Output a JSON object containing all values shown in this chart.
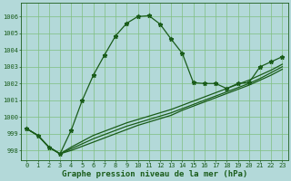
{
  "title": "Graphe pression niveau de la mer (hPa)",
  "bg_color": "#b3d9d9",
  "line_color": "#1a5c1a",
  "grid_color": "#7fbf7f",
  "xlim": [
    -0.5,
    23.5
  ],
  "ylim": [
    997.4,
    1006.8
  ],
  "yticks": [
    998,
    999,
    1000,
    1001,
    1002,
    1003,
    1004,
    1005,
    1006
  ],
  "xticks": [
    0,
    1,
    2,
    3,
    4,
    5,
    6,
    7,
    8,
    9,
    10,
    11,
    12,
    13,
    14,
    15,
    16,
    17,
    18,
    19,
    20,
    21,
    22,
    23
  ],
  "series1_x": [
    0,
    1,
    2,
    3,
    4,
    5,
    6,
    7,
    8,
    9,
    10,
    11,
    12,
    13,
    14,
    15,
    16,
    17,
    18,
    19,
    20,
    21,
    22,
    23
  ],
  "series1_y": [
    999.3,
    998.9,
    998.2,
    997.8,
    999.2,
    1001.0,
    1002.5,
    1003.7,
    1004.85,
    1005.6,
    1006.0,
    1006.05,
    1005.55,
    1004.65,
    1003.8,
    1002.05,
    1002.0,
    1002.0,
    1001.7,
    1002.0,
    1002.05,
    1003.0,
    1003.3,
    1003.6
  ],
  "series2_x": [
    0,
    1,
    2,
    3,
    4,
    5,
    6,
    7,
    8,
    9,
    10,
    11,
    12,
    13,
    14,
    15,
    16,
    17,
    18,
    19,
    20,
    21,
    22,
    23
  ],
  "series2_y": [
    999.3,
    998.9,
    998.2,
    997.8,
    998.0,
    998.25,
    998.5,
    998.75,
    999.0,
    999.25,
    999.5,
    999.7,
    999.9,
    1000.1,
    1000.4,
    1000.65,
    1000.9,
    1001.15,
    1001.4,
    1001.65,
    1001.9,
    1002.2,
    1002.5,
    1002.85
  ],
  "series3_x": [
    0,
    1,
    2,
    3,
    4,
    5,
    6,
    7,
    8,
    9,
    10,
    11,
    12,
    13,
    14,
    15,
    16,
    17,
    18,
    19,
    20,
    21,
    22,
    23
  ],
  "series3_y": [
    999.3,
    998.9,
    998.2,
    997.8,
    998.1,
    998.4,
    998.7,
    998.95,
    999.2,
    999.45,
    999.65,
    999.85,
    1000.05,
    1000.25,
    1000.5,
    1000.75,
    1001.0,
    1001.25,
    1001.5,
    1001.75,
    1002.0,
    1002.3,
    1002.65,
    1003.0
  ],
  "series4_x": [
    0,
    1,
    2,
    3,
    4,
    5,
    6,
    7,
    8,
    9,
    10,
    11,
    12,
    13,
    14,
    15,
    16,
    17,
    18,
    19,
    20,
    21,
    22,
    23
  ],
  "series4_y": [
    999.3,
    998.9,
    998.2,
    997.8,
    998.2,
    998.55,
    998.9,
    999.15,
    999.4,
    999.65,
    999.85,
    1000.05,
    1000.25,
    1000.45,
    1000.7,
    1000.95,
    1001.2,
    1001.45,
    1001.7,
    1001.95,
    1002.2,
    1002.5,
    1002.8,
    1003.15
  ],
  "marker": "*",
  "markersize": 3.5,
  "linewidth": 0.9,
  "tick_fontsize": 5.0,
  "title_fontsize": 6.5
}
